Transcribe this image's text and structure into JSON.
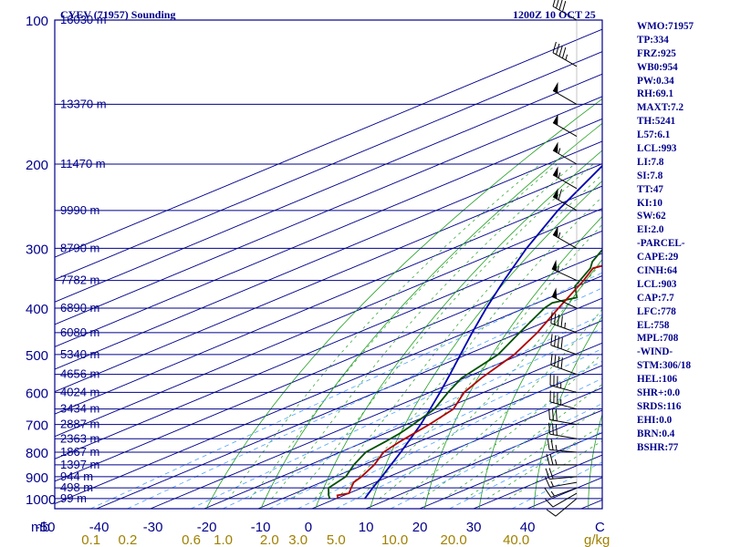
{
  "chart_data": {
    "type": "skew-t-log-p sounding",
    "title": "CYEV (71957) Sounding",
    "time": "1200Z 10 OCT 25",
    "pressure_levels": [
      100,
      200,
      300,
      400,
      500,
      600,
      700,
      800,
      900,
      1000
    ],
    "pressure_unit": "mb",
    "temp_ticks": [
      -50,
      -40,
      -30,
      -20,
      -10,
      0,
      10,
      20,
      30,
      40
    ],
    "temp_end_label": "C",
    "mixing_ratio_ticks": [
      "0.1",
      "0.2",
      "0.6",
      "1.0",
      "2.0",
      "3.0",
      "5.0",
      "10.0",
      "20.0",
      "40.0"
    ],
    "mixing_ratio_unit": "g/kg",
    "heights": [
      {
        "p": 100,
        "label": "16030 m"
      },
      {
        "p": 150,
        "label": "13370 m"
      },
      {
        "p": 200,
        "label": "11470 m"
      },
      {
        "p": 250,
        "label": "9990 m"
      },
      {
        "p": 300,
        "label": "8790 m"
      },
      {
        "p": 350,
        "label": "7782 m"
      },
      {
        "p": 400,
        "label": "6890 m"
      },
      {
        "p": 450,
        "label": "6080 m"
      },
      {
        "p": 500,
        "label": "5340 m"
      },
      {
        "p": 550,
        "label": "4656 m"
      },
      {
        "p": 600,
        "label": "4024 m"
      },
      {
        "p": 650,
        "label": "3434 m"
      },
      {
        "p": 700,
        "label": "2887 m"
      },
      {
        "p": 750,
        "label": "2363 m"
      },
      {
        "p": 800,
        "label": "1867 m"
      },
      {
        "p": 850,
        "label": "1397 m"
      },
      {
        "p": 900,
        "label": "944 m"
      },
      {
        "p": 950,
        "label": "498 m"
      },
      {
        "p": 1000,
        "label": "99 m"
      }
    ],
    "temperature_profile": [
      [
        1000,
        0.3
      ],
      [
        985,
        -1.2
      ],
      [
        975,
        0.0
      ],
      [
        950,
        -2.0
      ],
      [
        925,
        -4.0
      ],
      [
        900,
        -5.1
      ],
      [
        850,
        -8.0
      ],
      [
        800,
        -11.9
      ],
      [
        760,
        -13.6
      ],
      [
        700,
        -15.8
      ],
      [
        650,
        -18.2
      ],
      [
        600,
        -23.6
      ],
      [
        560,
        -26.8
      ],
      [
        500,
        -31.2
      ],
      [
        450,
        -36.7
      ],
      [
        400,
        -43.7
      ],
      [
        350,
        -51.4
      ],
      [
        330,
        -55.1
      ],
      [
        320,
        -53.3
      ],
      [
        300,
        -52.0
      ],
      [
        270,
        -51.5
      ],
      [
        250,
        -49.6
      ],
      [
        200,
        -46.1
      ],
      [
        175,
        -42.5
      ],
      [
        150,
        -42.0
      ],
      [
        135,
        -43.0
      ],
      [
        120,
        -40.0
      ],
      [
        110,
        -37.5
      ],
      [
        100,
        -36.5
      ]
    ],
    "dewpoint_profile": [
      [
        1000,
        -1.2
      ],
      [
        985,
        -2.8
      ],
      [
        950,
        -6.2
      ],
      [
        900,
        -8.0
      ],
      [
        850,
        -11.8
      ],
      [
        800,
        -15.2
      ],
      [
        760,
        -16.3
      ],
      [
        730,
        -17.3
      ],
      [
        700,
        -18.8
      ],
      [
        650,
        -21.7
      ],
      [
        600,
        -26.6
      ],
      [
        560,
        -30.5
      ],
      [
        500,
        -34.2
      ],
      [
        450,
        -40.0
      ],
      [
        400,
        -46.3
      ],
      [
        390,
        -47.2
      ],
      [
        380,
        -45.0
      ],
      [
        360,
        -50.4
      ],
      [
        330,
        -55.6
      ],
      [
        320,
        -58.1
      ],
      [
        300,
        -62.0
      ],
      [
        250,
        -70.0
      ],
      [
        200,
        -75.0
      ],
      [
        175,
        -76.4
      ],
      [
        150,
        -79.0
      ],
      [
        130,
        -79.8
      ],
      [
        120,
        -80.0
      ],
      [
        110,
        -80.8
      ],
      [
        100,
        -81.2
      ]
    ],
    "parcel_profile": [
      [
        1000,
        5.3
      ],
      [
        950,
        2.0
      ],
      [
        900,
        -1.3
      ],
      [
        850,
        -4.9
      ],
      [
        800,
        -8.7
      ],
      [
        750,
        -12.9
      ],
      [
        700,
        -17.4
      ],
      [
        650,
        -22.5
      ],
      [
        600,
        -28.1
      ],
      [
        550,
        -34.3
      ],
      [
        500,
        -41.2
      ],
      [
        450,
        -48.8
      ],
      [
        400,
        -57.1
      ],
      [
        350,
        -66.2
      ],
      [
        300,
        -76.3
      ],
      [
        250,
        -87.4
      ],
      [
        200,
        -99.5
      ],
      [
        150,
        -114.6
      ],
      [
        120,
        -126.4
      ]
    ],
    "wind_profile": [
      [
        1000,
        230,
        10
      ],
      [
        975,
        240,
        10
      ],
      [
        950,
        250,
        15
      ],
      [
        925,
        260,
        15
      ],
      [
        900,
        265,
        20
      ],
      [
        850,
        270,
        25
      ],
      [
        800,
        275,
        25
      ],
      [
        750,
        280,
        30
      ],
      [
        700,
        280,
        30
      ],
      [
        650,
        285,
        35
      ],
      [
        600,
        285,
        35
      ],
      [
        550,
        290,
        40
      ],
      [
        500,
        290,
        40
      ],
      [
        450,
        290,
        45
      ],
      [
        400,
        295,
        50
      ],
      [
        350,
        295,
        55
      ],
      [
        300,
        300,
        55
      ],
      [
        250,
        300,
        60
      ],
      [
        225,
        300,
        55
      ],
      [
        200,
        300,
        55
      ],
      [
        175,
        300,
        50
      ],
      [
        150,
        300,
        50
      ],
      [
        125,
        300,
        45
      ],
      [
        100,
        300,
        40
      ]
    ]
  },
  "indices": [
    "WMO:71957",
    "TP:334",
    "FRZ:925",
    "WB0:954",
    "PW:0.34",
    "RH:69.1",
    "MAXT:7.2",
    "TH:5241",
    "L57:6.1",
    "LCL:993",
    "LI:7.8",
    "SI:7.8",
    "TT:47",
    "KI:10",
    "SW:62",
    "EI:2.0",
    "-PARCEL-",
    "CAPE:29",
    "CINH:64",
    "LCL:903",
    "CAP:7.7",
    "LFC:778",
    "EL:758",
    "MPL:708",
    "-WIND-",
    "STM:306/18",
    "HEL:106",
    "SHR+:0.0",
    "SRDS:116",
    "EHI:0.0",
    "BRN:0.4",
    "BSHR:77"
  ],
  "colors": {
    "frame": "#00008b",
    "isotherm": "#00008b",
    "dry_adiabat": "#22a022",
    "moist_adiabat": "#22a022",
    "mixing_ratio": "#50a0ff",
    "temperature": "#b00000",
    "dewpoint": "#005000",
    "parcel": "#0000b0",
    "wind": "#000000",
    "mixing_label": "#a08000"
  }
}
